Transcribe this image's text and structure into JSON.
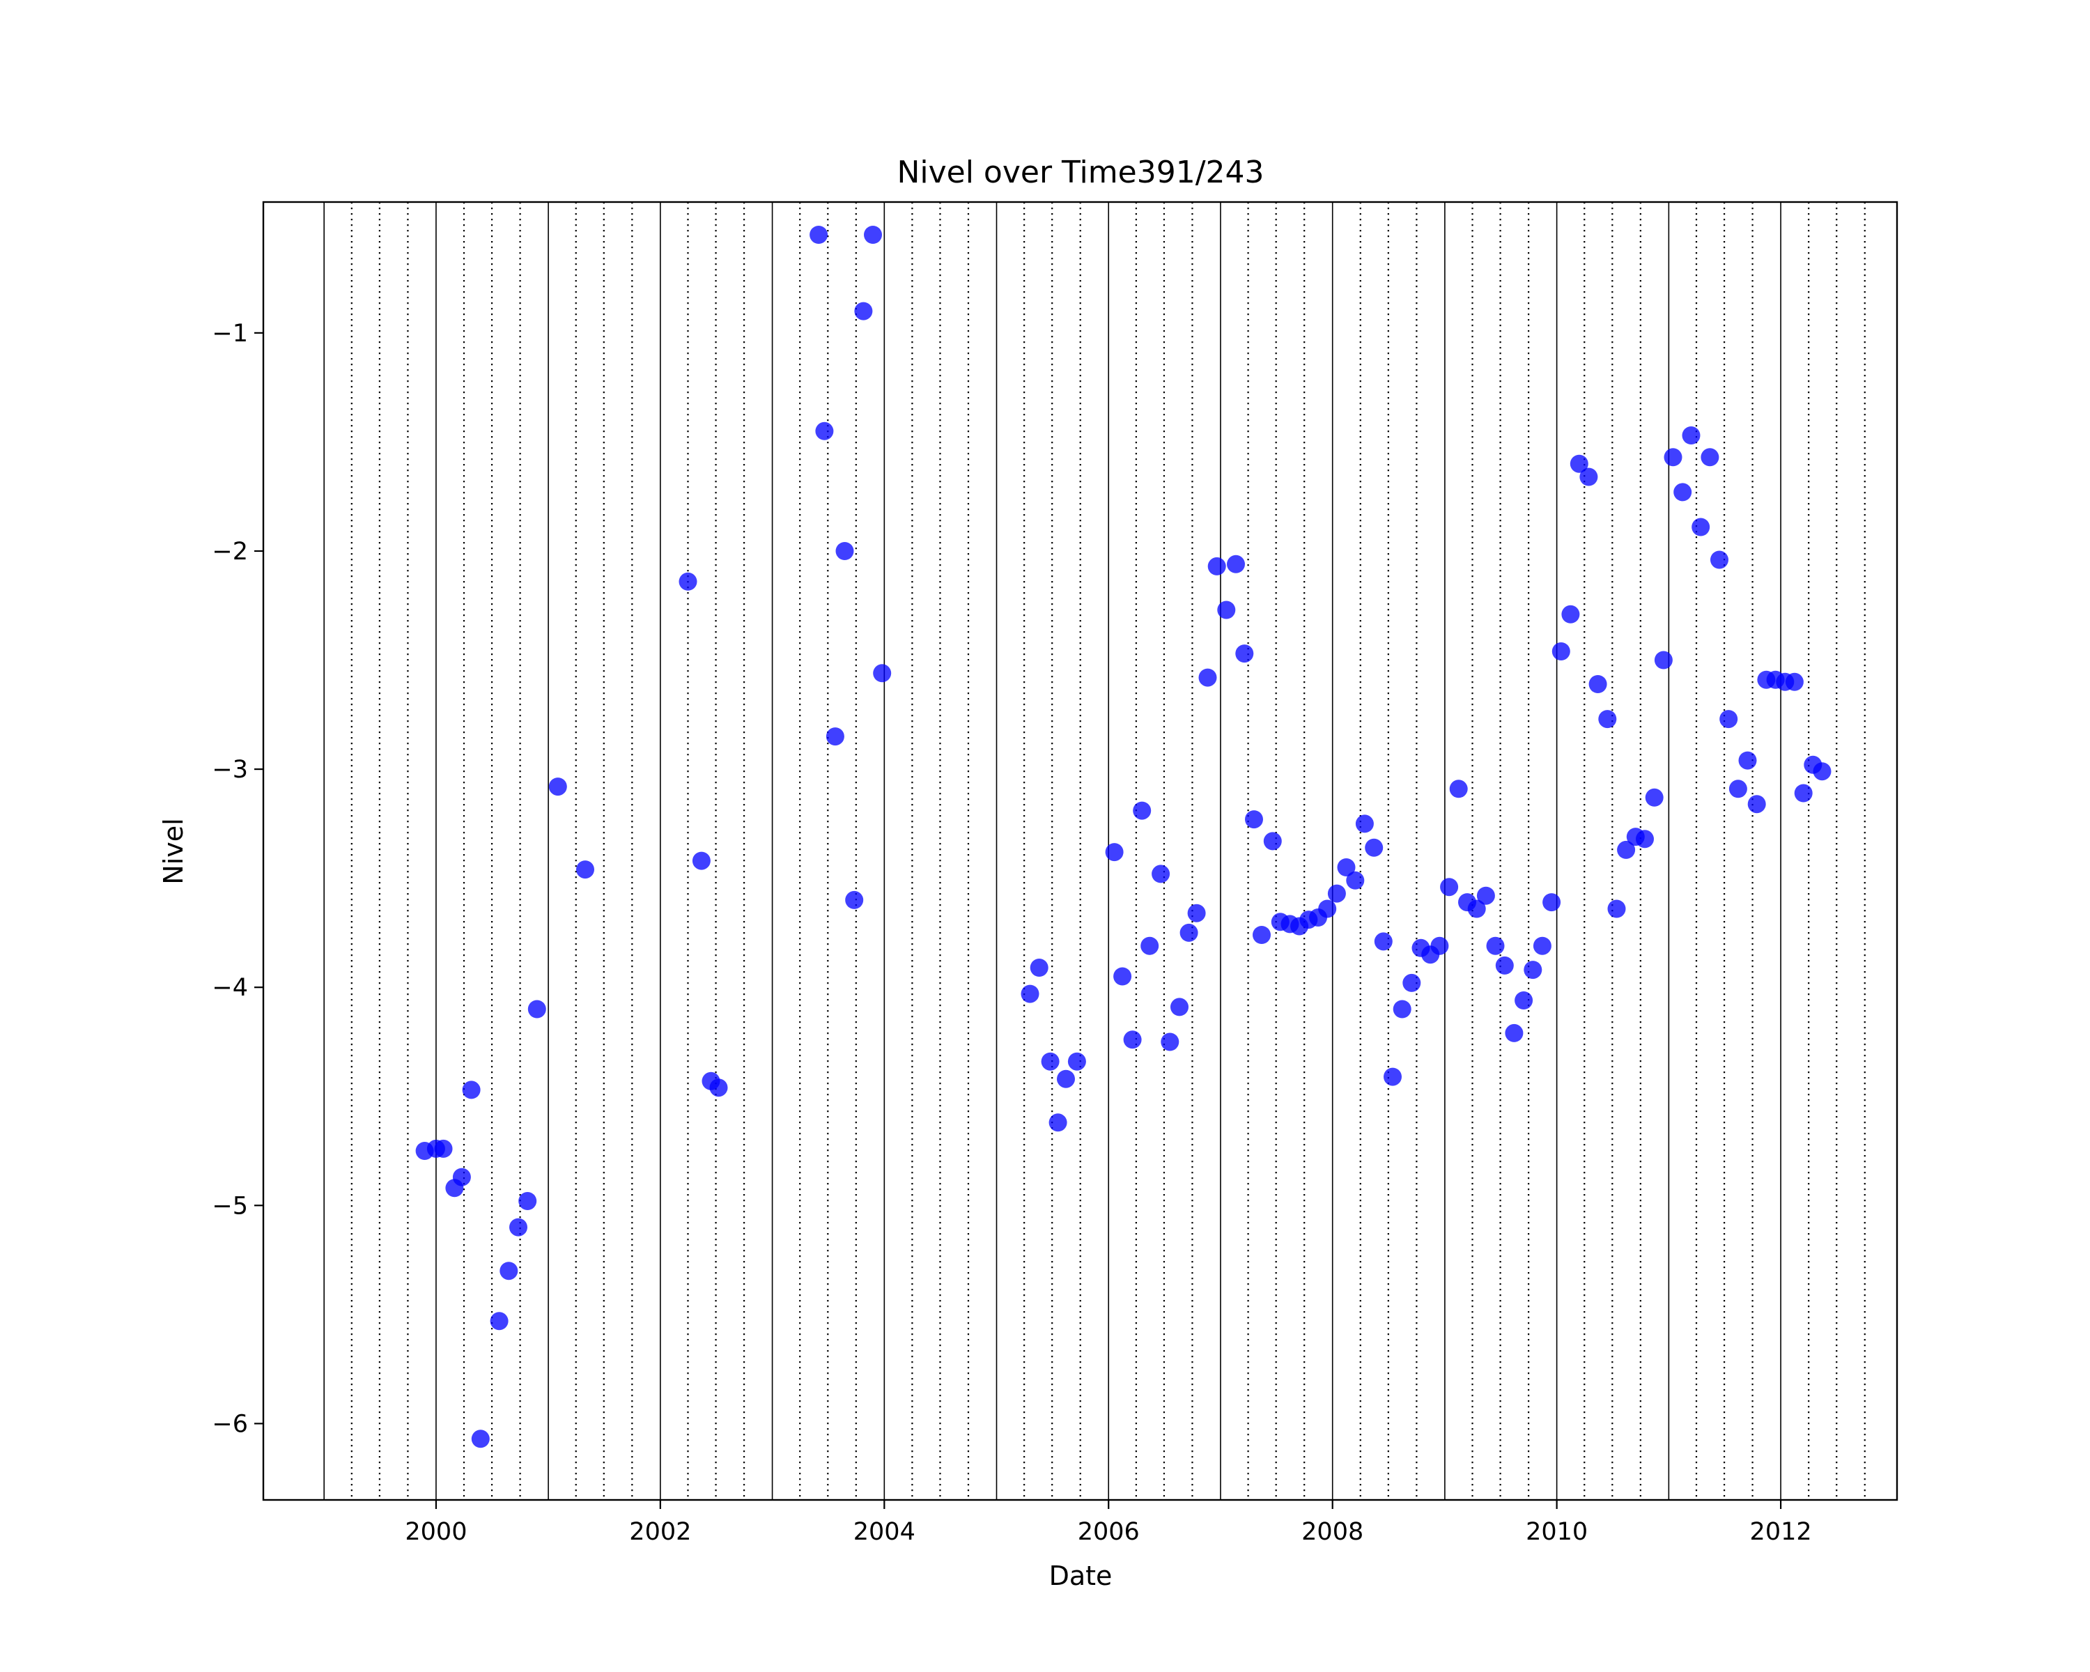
{
  "chart_data": {
    "type": "scatter",
    "title": "Nivel over Time391/243",
    "xlabel": "Date",
    "ylabel": "Nivel",
    "x_tick_labels": [
      "2000",
      "2002",
      "2004",
      "2006",
      "2008",
      "2010",
      "2012"
    ],
    "y_tick_labels": [
      "−1",
      "−2",
      "−3",
      "−4",
      "−5",
      "−6"
    ],
    "xlim": [
      "1998-06-17",
      "2013-01-14"
    ],
    "ylim": [
      -6.35,
      -0.4
    ],
    "marker_color": "#0000ff",
    "marker_alpha": 0.75,
    "vertical_grid": {
      "solid_lines_at": "every January 1, 1999–2012",
      "dotted_lines_at": "every quarter start (Apr 1, Jul 1, Oct 1), 1999–2012"
    },
    "series": [
      {
        "x": [
          "1999-11-25",
          "2000-01-01",
          "2000-01-25",
          "2000-03-01",
          "2000-03-25",
          "2000-04-25",
          "2000-05-25",
          "2000-07-25",
          "2000-08-25",
          "2000-09-25",
          "2000-10-25",
          "2000-11-25",
          "2001-02-01",
          "2001-05-01",
          "2002-04-01",
          "2002-05-15",
          "2002-06-15",
          "2002-07-10",
          "2003-06-01",
          "2003-06-20",
          "2003-07-25",
          "2003-08-25",
          "2003-09-25",
          "2003-10-25",
          "2003-11-25",
          "2003-12-25",
          "2005-04-20",
          "2005-05-20",
          "2005-06-25",
          "2005-07-20",
          "2005-08-15",
          "2005-09-20",
          "2006-01-20",
          "2006-02-15",
          "2006-03-20",
          "2006-04-20",
          "2006-05-15",
          "2006-06-20",
          "2006-07-20",
          "2006-08-20",
          "2006-09-20",
          "2006-10-15",
          "2006-11-20",
          "2006-12-20",
          "2007-01-20",
          "2007-02-20",
          "2007-03-20",
          "2007-04-20",
          "2007-05-15",
          "2007-06-20",
          "2007-07-15",
          "2007-08-15",
          "2007-09-15",
          "2007-10-15",
          "2007-11-15",
          "2007-12-15",
          "2008-01-15",
          "2008-02-15",
          "2008-03-15",
          "2008-04-15",
          "2008-05-15",
          "2008-06-15",
          "2008-07-15",
          "2008-08-15",
          "2008-09-15",
          "2008-10-15",
          "2008-11-15",
          "2008-12-15",
          "2009-01-15",
          "2009-02-15",
          "2009-03-15",
          "2009-04-15",
          "2009-05-15",
          "2009-06-15",
          "2009-07-15",
          "2009-08-15",
          "2009-09-15",
          "2009-10-15",
          "2009-11-15",
          "2009-12-15",
          "2010-01-15",
          "2010-02-15",
          "2010-03-15",
          "2010-04-15",
          "2010-05-15",
          "2010-06-15",
          "2010-07-15",
          "2010-08-15",
          "2010-09-15",
          "2010-10-15",
          "2010-11-15",
          "2010-12-15",
          "2011-01-15",
          "2011-02-15",
          "2011-03-15",
          "2011-04-15",
          "2011-05-15",
          "2011-06-15",
          "2011-07-15",
          "2011-08-15",
          "2011-09-15",
          "2011-10-15",
          "2011-11-15",
          "2011-12-15",
          "2012-01-15",
          "2012-02-15",
          "2012-03-15",
          "2012-04-15",
          "2012-05-15"
        ],
        "y": [
          -4.75,
          -4.74,
          -4.74,
          -4.92,
          -4.87,
          -4.47,
          -6.07,
          -5.53,
          -5.3,
          -5.1,
          -4.98,
          -4.1,
          -3.08,
          -3.46,
          -2.14,
          -3.42,
          -4.43,
          -4.46,
          -0.55,
          -1.45,
          -2.85,
          -2.0,
          -3.6,
          -0.9,
          -0.55,
          -2.56,
          -4.03,
          -3.91,
          -4.34,
          -4.62,
          -4.42,
          -4.34,
          -3.38,
          -3.95,
          -4.24,
          -3.19,
          -3.81,
          -3.48,
          -4.25,
          -4.09,
          -3.75,
          -3.66,
          -2.58,
          -2.07,
          -2.27,
          -2.06,
          -2.47,
          -3.23,
          -3.76,
          -3.33,
          -3.7,
          -3.71,
          -3.72,
          -3.69,
          -3.68,
          -3.64,
          -3.57,
          -3.45,
          -3.51,
          -3.25,
          -3.36,
          -3.79,
          -4.41,
          -4.1,
          -3.98,
          -3.82,
          -3.85,
          -3.81,
          -3.54,
          -3.09,
          -3.61,
          -3.64,
          -3.58,
          -3.81,
          -3.9,
          -4.21,
          -4.06,
          -3.92,
          -3.81,
          -3.61,
          -2.46,
          -2.29,
          -1.6,
          -1.66,
          -2.61,
          -2.77,
          -3.64,
          -3.37,
          -3.31,
          -3.32,
          -3.13,
          -2.5,
          -1.57,
          -1.73,
          -1.47,
          -1.89,
          -1.57,
          -2.04,
          -2.77,
          -3.09,
          -2.96,
          -3.16,
          -2.59,
          -2.59,
          -2.6,
          -2.6,
          -3.11,
          -2.98,
          -3.01
        ]
      }
    ]
  }
}
